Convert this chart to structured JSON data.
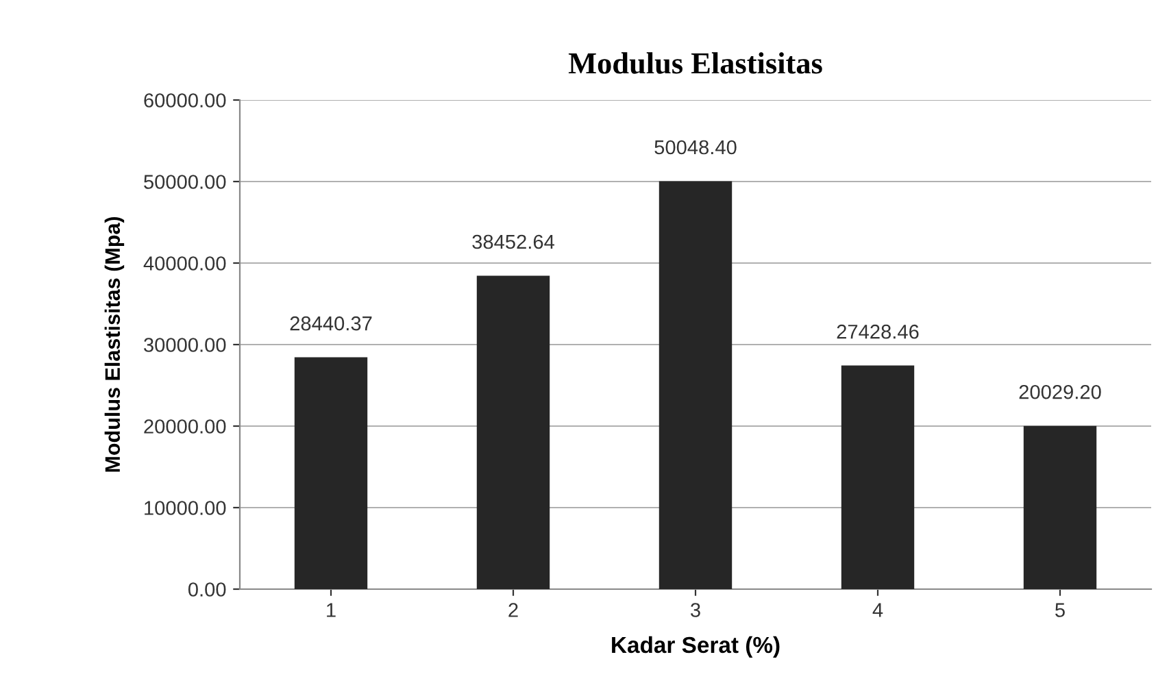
{
  "chart_data": {
    "type": "bar",
    "title": "Modulus Elastisitas",
    "xlabel": "Kadar Serat (%)",
    "ylabel": "Modulus Elastisitas (Mpa)",
    "categories": [
      "1",
      "2",
      "3",
      "4",
      "5"
    ],
    "values": [
      28440.37,
      38452.64,
      50048.4,
      27428.46,
      20029.2
    ],
    "value_labels": [
      "28440.37",
      "38452.64",
      "50048.40",
      "27428.46",
      "20029.20"
    ],
    "color": "#262626",
    "ylim": [
      0,
      60000
    ],
    "yticks": [
      {
        "value": 0,
        "label": "0.00"
      },
      {
        "value": 10000,
        "label": "10000.00"
      },
      {
        "value": 20000,
        "label": "20000.00"
      },
      {
        "value": 30000,
        "label": "30000.00"
      },
      {
        "value": 40000,
        "label": "40000.00"
      },
      {
        "value": 50000,
        "label": "50000.00"
      },
      {
        "value": 60000,
        "label": "60000.00"
      }
    ],
    "grid": "y",
    "legend": false
  }
}
